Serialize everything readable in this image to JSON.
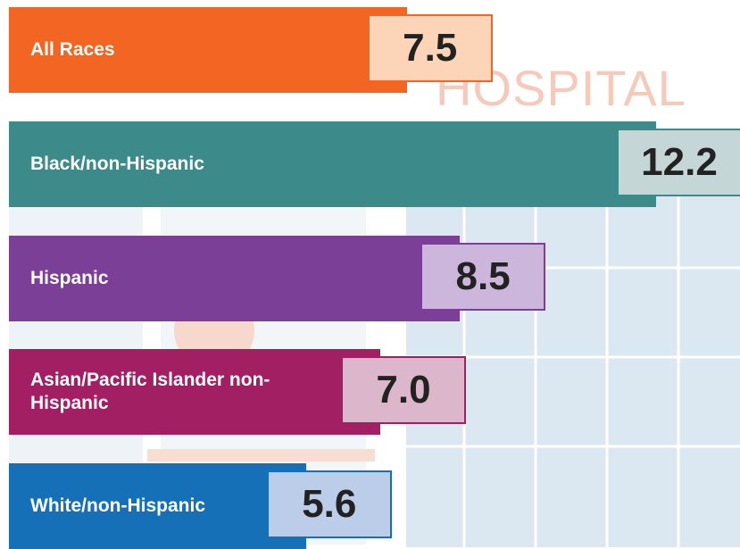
{
  "chart_data": {
    "type": "bar",
    "background_text": "HOSPITAL",
    "categories": [
      "All Races",
      "Black/non-Hispanic",
      "Hispanic",
      "Asian/Pacific Islander non-Hispanic",
      "White/non-Hispanic"
    ],
    "values": [
      7.5,
      12.2,
      8.5,
      7.0,
      5.6
    ],
    "value_labels": [
      "7.5",
      "12.2",
      "8.5",
      "7.0",
      "5.6"
    ],
    "colors": [
      "#f26522",
      "#3d8a8a",
      "#7b3f98",
      "#a31f63",
      "#1570b8"
    ],
    "label_fills": [
      "#fcd5b8",
      "#c4d6d6",
      "#ccb6dc",
      "#dcb6ca",
      "#bccde9"
    ]
  }
}
